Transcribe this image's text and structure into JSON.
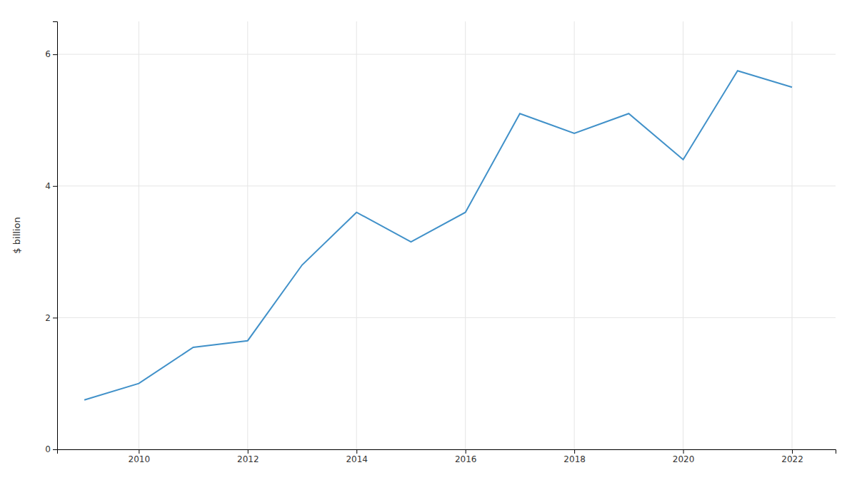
{
  "chart_data": {
    "type": "line",
    "x": [
      2009,
      2010,
      2011,
      2012,
      2013,
      2014,
      2015,
      2016,
      2017,
      2018,
      2019,
      2020,
      2021,
      2022
    ],
    "values": [
      0.75,
      1.0,
      1.55,
      1.65,
      2.8,
      3.6,
      3.15,
      3.6,
      5.1,
      4.8,
      5.1,
      4.4,
      5.75,
      5.5
    ],
    "color": "#4191c9",
    "ylabel": "$ billion",
    "xlim": [
      2008.5,
      2022.8
    ],
    "xticks": [
      2010,
      2012,
      2014,
      2016,
      2018,
      2020,
      2022
    ],
    "ylim": [
      0,
      6.5
    ],
    "yticks": [
      0,
      2,
      4,
      6
    ],
    "grid": true
  }
}
